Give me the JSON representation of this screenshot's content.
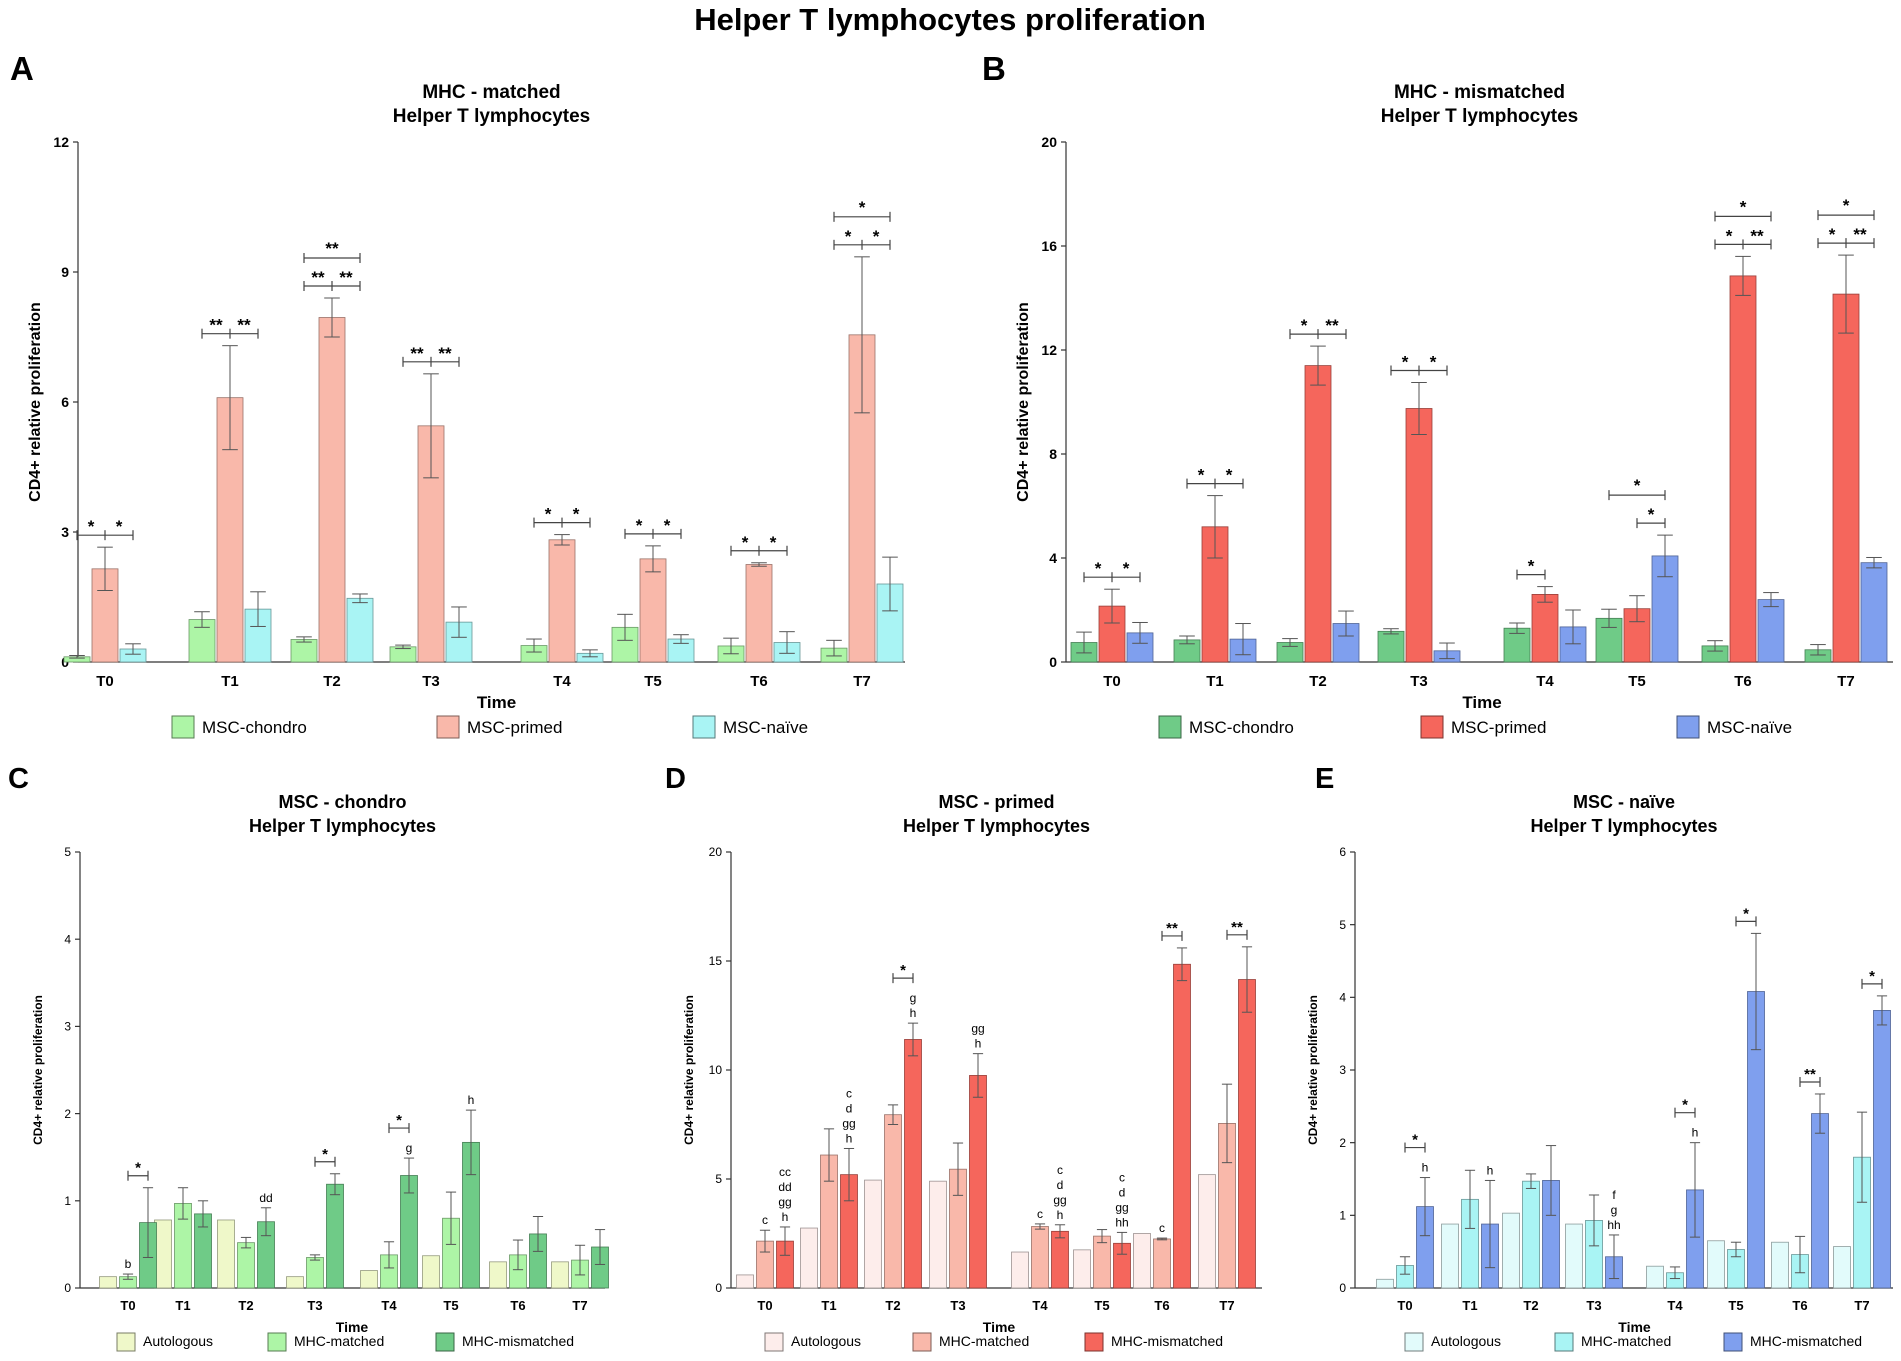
{
  "figure_title": "Helper T lymphocytes proliferation",
  "colors": {
    "chondro_light": "#ADF5A6",
    "primed_light": "#F9B8AA",
    "naive_light": "#A9F4F4",
    "chondro_dark": "#6FCB87",
    "primed_dark": "#F5665C",
    "naive_dark": "#7F9FEE",
    "auto_chondro": "#EFF8C9",
    "auto_primed": "#FDEDEB",
    "auto_naive": "#E2FBFB"
  },
  "chart_data": [
    {
      "id": "A",
      "panel_label": "A",
      "type": "bar",
      "title": "MHC - matched",
      "subtitle": "Helper T lymphocytes",
      "xlabel": "Time",
      "ylabel": "CD4+ relative proliferation",
      "ylim": [
        0,
        12
      ],
      "yticks": [
        0,
        3,
        6,
        9,
        12
      ],
      "bold_ticks": true,
      "categories": [
        "T0",
        "T1",
        "T2",
        "T3",
        "T4",
        "T5",
        "T6",
        "T7"
      ],
      "series": [
        {
          "name": "MSC-chondro",
          "color": "#ADF5A6",
          "values": [
            0.12,
            0.98,
            0.52,
            0.35,
            0.38,
            0.8,
            0.37,
            0.32
          ],
          "errors": [
            0.03,
            0.18,
            0.06,
            0.04,
            0.15,
            0.3,
            0.18,
            0.18
          ]
        },
        {
          "name": "MSC-primed",
          "color": "#F9B8AA",
          "values": [
            2.15,
            6.1,
            7.95,
            5.45,
            2.82,
            2.38,
            2.25,
            7.55
          ],
          "errors": [
            0.5,
            1.2,
            0.45,
            1.2,
            0.12,
            0.3,
            0.04,
            1.8
          ]
        },
        {
          "name": "MSC-naïve",
          "color": "#A9F4F4",
          "values": [
            0.3,
            1.22,
            1.47,
            0.92,
            0.2,
            0.53,
            0.45,
            1.8
          ],
          "errors": [
            0.12,
            0.4,
            0.1,
            0.35,
            0.08,
            0.1,
            0.25,
            0.62
          ]
        }
      ],
      "annotations": [
        {
          "cat": 0,
          "kind": "pair",
          "sym1": "*",
          "sym2": "*"
        },
        {
          "cat": 1,
          "kind": "pair",
          "sym1": "**",
          "sym2": "**"
        },
        {
          "cat": 2,
          "kind": "pair",
          "sym1": "**",
          "sym2": "**"
        },
        {
          "cat": 2,
          "kind": "span",
          "sym": "**"
        },
        {
          "cat": 3,
          "kind": "pair",
          "sym1": "**",
          "sym2": "**"
        },
        {
          "cat": 4,
          "kind": "pair",
          "sym1": "*",
          "sym2": "*"
        },
        {
          "cat": 5,
          "kind": "pair",
          "sym1": "*",
          "sym2": "*"
        },
        {
          "cat": 6,
          "kind": "pair",
          "sym1": "*",
          "sym2": "*"
        },
        {
          "cat": 7,
          "kind": "pair",
          "sym1": "*",
          "sym2": "*"
        },
        {
          "cat": 7,
          "kind": "span",
          "sym": "*"
        }
      ]
    },
    {
      "id": "B",
      "panel_label": "B",
      "type": "bar",
      "title": "MHC - mismatched",
      "subtitle": "Helper T lymphocytes",
      "xlabel": "Time",
      "ylabel": "CD4+ relative proliferation",
      "ylim": [
        0,
        20
      ],
      "yticks": [
        0,
        4,
        8,
        12,
        16,
        20
      ],
      "bold_ticks": true,
      "categories": [
        "T0",
        "T1",
        "T2",
        "T3",
        "T4",
        "T5",
        "T6",
        "T7"
      ],
      "series": [
        {
          "name": "MSC-chondro",
          "color": "#6FCB87",
          "values": [
            0.75,
            0.85,
            0.75,
            1.18,
            1.3,
            1.68,
            0.62,
            0.47
          ],
          "errors": [
            0.4,
            0.15,
            0.15,
            0.1,
            0.2,
            0.35,
            0.2,
            0.2
          ]
        },
        {
          "name": "MSC-primed",
          "color": "#F5665C",
          "values": [
            2.15,
            5.2,
            11.4,
            9.75,
            2.6,
            2.05,
            14.85,
            14.15
          ],
          "errors": [
            0.65,
            1.2,
            0.75,
            1.0,
            0.3,
            0.5,
            0.75,
            1.5
          ]
        },
        {
          "name": "MSC-naïve",
          "color": "#7F9FEE",
          "values": [
            1.12,
            0.88,
            1.48,
            0.43,
            1.35,
            4.08,
            2.4,
            3.82
          ],
          "errors": [
            0.4,
            0.6,
            0.48,
            0.3,
            0.65,
            0.8,
            0.27,
            0.2
          ]
        }
      ],
      "annotations": [
        {
          "cat": 0,
          "kind": "pair",
          "sym1": "*",
          "sym2": "*"
        },
        {
          "cat": 1,
          "kind": "pair",
          "sym1": "*",
          "sym2": "*"
        },
        {
          "cat": 2,
          "kind": "pair",
          "sym1": "*",
          "sym2": "**"
        },
        {
          "cat": 3,
          "kind": "pair",
          "sym1": "*",
          "sym2": "*"
        },
        {
          "cat": 4,
          "kind": "single",
          "sym": "*",
          "from": 0,
          "to": 1
        },
        {
          "cat": 5,
          "kind": "single",
          "sym": "*",
          "from": 1,
          "to": 2
        },
        {
          "cat": 5,
          "kind": "span",
          "sym": "*"
        },
        {
          "cat": 6,
          "kind": "pair",
          "sym1": "*",
          "sym2": "**"
        },
        {
          "cat": 6,
          "kind": "span",
          "sym": "*"
        },
        {
          "cat": 7,
          "kind": "pair",
          "sym1": "*",
          "sym2": "**"
        },
        {
          "cat": 7,
          "kind": "span",
          "sym": "*"
        }
      ]
    },
    {
      "id": "C",
      "panel_label": "C",
      "type": "bar",
      "title": "MSC - chondro",
      "subtitle": "Helper T lymphocytes",
      "xlabel": "Time",
      "ylabel": "CD4+ relative proliferation",
      "ylim": [
        0,
        5
      ],
      "yticks": [
        0,
        1,
        2,
        3,
        4,
        5
      ],
      "bold_ticks": false,
      "categories": [
        "T0",
        "T1",
        "T2",
        "T3",
        "T4",
        "T5",
        "T6",
        "T7"
      ],
      "series": [
        {
          "name": "Autologous",
          "color": "#EFF8C9",
          "values": [
            0.13,
            0.78,
            0.78,
            0.13,
            0.2,
            0.37,
            0.3,
            0.3
          ],
          "errors": [
            0,
            0,
            0,
            0,
            0,
            0,
            0,
            0
          ]
        },
        {
          "name": "MHC-matched",
          "color": "#ADF5A6",
          "values": [
            0.13,
            0.97,
            0.52,
            0.35,
            0.38,
            0.8,
            0.38,
            0.32
          ],
          "errors": [
            0.03,
            0.18,
            0.06,
            0.03,
            0.15,
            0.3,
            0.17,
            0.17
          ]
        },
        {
          "name": "MHC-mismatched",
          "color": "#6FCB87",
          "values": [
            0.75,
            0.85,
            0.76,
            1.19,
            1.29,
            1.67,
            0.62,
            0.47
          ],
          "errors": [
            0.4,
            0.15,
            0.16,
            0.12,
            0.2,
            0.37,
            0.2,
            0.2
          ]
        }
      ],
      "annotations": [
        {
          "cat": 0,
          "kind": "single",
          "sym": "*",
          "from": 1,
          "to": 2
        },
        {
          "cat": 0,
          "kind": "letters",
          "series": 1,
          "letters": [
            "b"
          ]
        },
        {
          "cat": 2,
          "kind": "letters",
          "series": 2,
          "letters": [
            "dd"
          ]
        },
        {
          "cat": 3,
          "kind": "single",
          "sym": "*",
          "from": 1,
          "to": 2
        },
        {
          "cat": 4,
          "kind": "letters",
          "series": 2,
          "letters": [
            "g"
          ]
        },
        {
          "cat": 4,
          "kind": "single",
          "sym": "*",
          "from": 1,
          "to": 2
        },
        {
          "cat": 5,
          "kind": "letters",
          "series": 2,
          "letters": [
            "h"
          ]
        }
      ]
    },
    {
      "id": "D",
      "panel_label": "D",
      "type": "bar",
      "title": "MSC - primed",
      "subtitle": "Helper T lymphocytes",
      "xlabel": "Time",
      "ylabel": "CD4+ relative proliferation",
      "ylim": [
        0,
        20
      ],
      "yticks": [
        0,
        5,
        10,
        15,
        20
      ],
      "bold_ticks": false,
      "categories": [
        "T0",
        "T1",
        "T2",
        "T3",
        "T4",
        "T5",
        "T6",
        "T7"
      ],
      "series": [
        {
          "name": "Autologous",
          "color": "#FDEDEB",
          "values": [
            0.6,
            2.75,
            4.95,
            4.9,
            1.65,
            1.75,
            2.5,
            5.2
          ],
          "errors": [
            0,
            0,
            0,
            0,
            0,
            0,
            0,
            0
          ]
        },
        {
          "name": "MHC-matched",
          "color": "#F9B8AA",
          "values": [
            2.15,
            6.1,
            7.95,
            5.45,
            2.82,
            2.38,
            2.25,
            7.55
          ],
          "errors": [
            0.5,
            1.2,
            0.45,
            1.2,
            0.12,
            0.3,
            0.04,
            1.8
          ]
        },
        {
          "name": "MHC-mismatched",
          "color": "#F5665C",
          "values": [
            2.15,
            5.2,
            11.4,
            9.75,
            2.6,
            2.05,
            14.85,
            14.15
          ],
          "errors": [
            0.65,
            1.2,
            0.75,
            1.0,
            0.3,
            0.5,
            0.75,
            1.5
          ]
        }
      ],
      "annotations": [
        {
          "cat": 0,
          "kind": "letters",
          "series": 1,
          "letters": [
            "c"
          ]
        },
        {
          "cat": 0,
          "kind": "letters",
          "series": 2,
          "letters": [
            "cc",
            "dd",
            "gg",
            "h"
          ]
        },
        {
          "cat": 1,
          "kind": "letters",
          "series": 2,
          "letters": [
            "c",
            "d",
            "gg",
            "h"
          ]
        },
        {
          "cat": 2,
          "kind": "letters",
          "series": 2,
          "letters": [
            "g",
            "h"
          ]
        },
        {
          "cat": 2,
          "kind": "single",
          "sym": "*",
          "from": 1,
          "to": 2
        },
        {
          "cat": 3,
          "kind": "letters",
          "series": 2,
          "letters": [
            "gg",
            "h"
          ]
        },
        {
          "cat": 4,
          "kind": "letters",
          "series": 1,
          "letters": [
            "c"
          ]
        },
        {
          "cat": 4,
          "kind": "letters",
          "series": 2,
          "letters": [
            "c",
            "d",
            "gg",
            "h"
          ]
        },
        {
          "cat": 5,
          "kind": "letters",
          "series": 2,
          "letters": [
            "c",
            "d",
            "gg",
            "hh"
          ]
        },
        {
          "cat": 6,
          "kind": "letters",
          "series": 1,
          "letters": [
            "c"
          ]
        },
        {
          "cat": 6,
          "kind": "single",
          "sym": "**",
          "from": 1,
          "to": 2
        },
        {
          "cat": 7,
          "kind": "single",
          "sym": "**",
          "from": 1,
          "to": 2
        }
      ]
    },
    {
      "id": "E",
      "panel_label": "E",
      "type": "bar",
      "title": "MSC - naïve",
      "subtitle": "Helper T lymphocytes",
      "xlabel": "Time",
      "ylabel": "CD4+ relative proliferation",
      "ylim": [
        0,
        6
      ],
      "yticks": [
        0,
        1,
        2,
        3,
        4,
        5,
        6
      ],
      "bold_ticks": false,
      "categories": [
        "T0",
        "T1",
        "T2",
        "T3",
        "T4",
        "T5",
        "T6",
        "T7"
      ],
      "series": [
        {
          "name": "Autologous",
          "color": "#E2FBFB",
          "values": [
            0.12,
            0.88,
            1.03,
            0.88,
            0.3,
            0.65,
            0.63,
            0.57
          ],
          "errors": [
            0,
            0,
            0,
            0,
            0,
            0,
            0,
            0
          ]
        },
        {
          "name": "MHC-matched",
          "color": "#A9F4F4",
          "values": [
            0.31,
            1.22,
            1.47,
            0.93,
            0.21,
            0.53,
            0.46,
            1.8
          ],
          "errors": [
            0.12,
            0.4,
            0.1,
            0.35,
            0.08,
            0.1,
            0.25,
            0.62
          ]
        },
        {
          "name": "MHC-mismatched",
          "color": "#7F9FEE",
          "values": [
            1.12,
            0.88,
            1.48,
            0.43,
            1.35,
            4.08,
            2.4,
            3.82
          ],
          "errors": [
            0.4,
            0.6,
            0.48,
            0.3,
            0.65,
            0.8,
            0.27,
            0.2
          ]
        }
      ],
      "annotations": [
        {
          "cat": 0,
          "kind": "letters",
          "series": 2,
          "letters": [
            "h"
          ]
        },
        {
          "cat": 0,
          "kind": "single",
          "sym": "*",
          "from": 1,
          "to": 2
        },
        {
          "cat": 1,
          "kind": "letters",
          "series": 2,
          "letters": [
            "h"
          ]
        },
        {
          "cat": 3,
          "kind": "letters",
          "series": 2,
          "letters": [
            "f",
            "g",
            "hh"
          ]
        },
        {
          "cat": 4,
          "kind": "letters",
          "series": 2,
          "letters": [
            "h"
          ]
        },
        {
          "cat": 4,
          "kind": "single",
          "sym": "*",
          "from": 1,
          "to": 2
        },
        {
          "cat": 5,
          "kind": "single",
          "sym": "*",
          "from": 1,
          "to": 2
        },
        {
          "cat": 6,
          "kind": "single",
          "sym": "**",
          "from": 1,
          "to": 2
        },
        {
          "cat": 7,
          "kind": "single",
          "sym": "*",
          "from": 1,
          "to": 2
        }
      ]
    }
  ]
}
